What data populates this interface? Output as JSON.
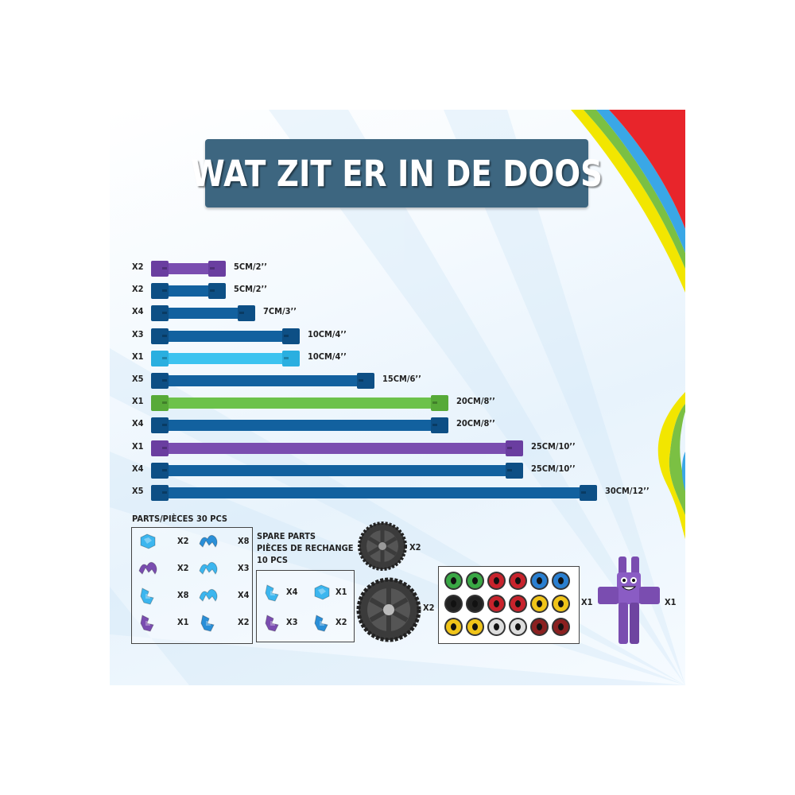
{
  "title": "WAT ZIT ER IN DE DOOS",
  "colors": {
    "title_bg": "#3d6680",
    "rod_blue": "#12619f",
    "rod_purple": "#7a4db0",
    "rod_light": "#3cc3f0",
    "rod_green": "#6cc24a"
  },
  "rods": [
    {
      "qty": "X2",
      "label": "5CM/2’’",
      "cm": 5,
      "color": "purple"
    },
    {
      "qty": "X2",
      "label": "5CM/2’’",
      "cm": 5,
      "color": "blue"
    },
    {
      "qty": "X4",
      "label": "7CM/3’’",
      "cm": 7,
      "color": "blue"
    },
    {
      "qty": "X3",
      "label": "10CM/4’’",
      "cm": 10,
      "color": "blue"
    },
    {
      "qty": "X1",
      "label": "10CM/4’’",
      "cm": 10,
      "color": "light"
    },
    {
      "qty": "X5",
      "label": "15CM/6’’",
      "cm": 15,
      "color": "blue"
    },
    {
      "qty": "X1",
      "label": "20CM/8’’",
      "cm": 20,
      "color": "green"
    },
    {
      "qty": "X4",
      "label": "20CM/8’’",
      "cm": 20,
      "color": "blue"
    },
    {
      "qty": "X1",
      "label": "25CM/10’’",
      "cm": 25,
      "color": "purple"
    },
    {
      "qty": "X4",
      "label": "25CM/10’’",
      "cm": 25,
      "color": "blue"
    },
    {
      "qty": "X5",
      "label": "30CM/12’’",
      "cm": 30,
      "color": "blue"
    }
  ],
  "parts": {
    "heading": "PARTS/PIÈCES   30 PCS",
    "items": [
      {
        "qty": "X2",
        "icon": "light-blue-connector-icon"
      },
      {
        "qty": "X8",
        "icon": "blue-clip-connector-icon"
      },
      {
        "qty": "X2",
        "icon": "purple-clip-connector-icon"
      },
      {
        "qty": "X3",
        "icon": "light-blue-clip-connector-icon"
      },
      {
        "qty": "X8",
        "icon": "light-blue-hub-connector-icon"
      },
      {
        "qty": "X4",
        "icon": "light-blue-double-clip-icon"
      },
      {
        "qty": "X1",
        "icon": "purple-hub-connector-icon"
      },
      {
        "qty": "X2",
        "icon": "blue-hub-connector-icon"
      }
    ]
  },
  "spare": {
    "heading_1": "SPARE PARTS",
    "heading_2": "PIÈCES DE RECHANGE",
    "heading_3": "10 PCS",
    "items": [
      {
        "qty": "X4",
        "icon": "light-blue-hub-connector-icon"
      },
      {
        "qty": "X1",
        "icon": "light-blue-connector-icon"
      },
      {
        "qty": "X3",
        "icon": "purple-hub-connector-icon"
      },
      {
        "qty": "X2",
        "icon": "blue-hub-connector-icon"
      }
    ]
  },
  "wheels": [
    {
      "qty": "X2",
      "icon": "small-wheel-icon"
    },
    {
      "qty": "X2",
      "icon": "large-wheel-icon"
    }
  ],
  "eye_stickers": {
    "qty": "X1",
    "icon": "eye-sticker-sheet-icon"
  },
  "figure": {
    "qty": "X1",
    "icon": "purple-bunny-figure-icon"
  }
}
